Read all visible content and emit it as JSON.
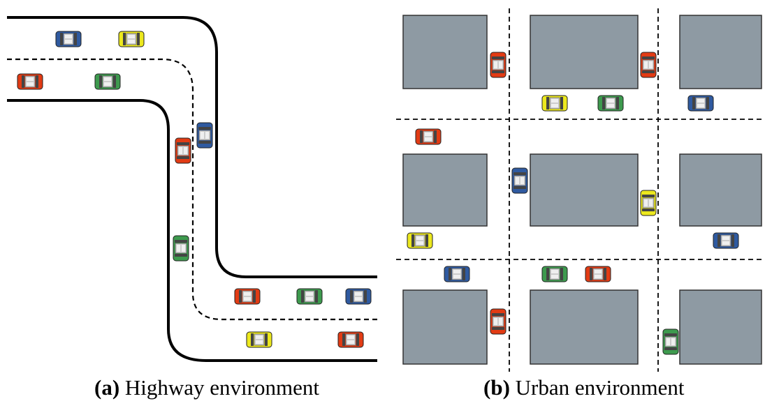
{
  "figure": {
    "subfigures": [
      {
        "id": "a",
        "label": "(a)",
        "caption": "Highway environment"
      },
      {
        "id": "b",
        "label": "(b)",
        "caption": "Urban environment"
      }
    ]
  },
  "colors": {
    "background": "#ffffff",
    "building": "#8e9aa3",
    "building_stroke": "#333333",
    "road_edge": "#000000",
    "lane_marking": "#000000",
    "car_red": "#e23b14",
    "car_blue": "#2f5aa0",
    "car_yellow": "#ece81e",
    "car_green": "#3d9a4e"
  },
  "icons": {
    "car": "car-top-view-icon",
    "building": "building-block"
  },
  "highway": {
    "cars": [
      {
        "color": "blue"
      },
      {
        "color": "yellow"
      },
      {
        "color": "red"
      },
      {
        "color": "green"
      },
      {
        "color": "red"
      },
      {
        "color": "blue"
      },
      {
        "color": "green"
      },
      {
        "color": "red"
      },
      {
        "color": "green"
      },
      {
        "color": "blue"
      },
      {
        "color": "yellow"
      },
      {
        "color": "red"
      }
    ]
  },
  "urban": {
    "cars": [
      {
        "color": "red"
      },
      {
        "color": "red"
      },
      {
        "color": "yellow"
      },
      {
        "color": "green"
      },
      {
        "color": "blue"
      },
      {
        "color": "red"
      },
      {
        "color": "blue"
      },
      {
        "color": "yellow"
      },
      {
        "color": "yellow"
      },
      {
        "color": "blue"
      },
      {
        "color": "blue"
      },
      {
        "color": "green"
      },
      {
        "color": "red"
      },
      {
        "color": "red"
      },
      {
        "color": "green"
      }
    ]
  }
}
